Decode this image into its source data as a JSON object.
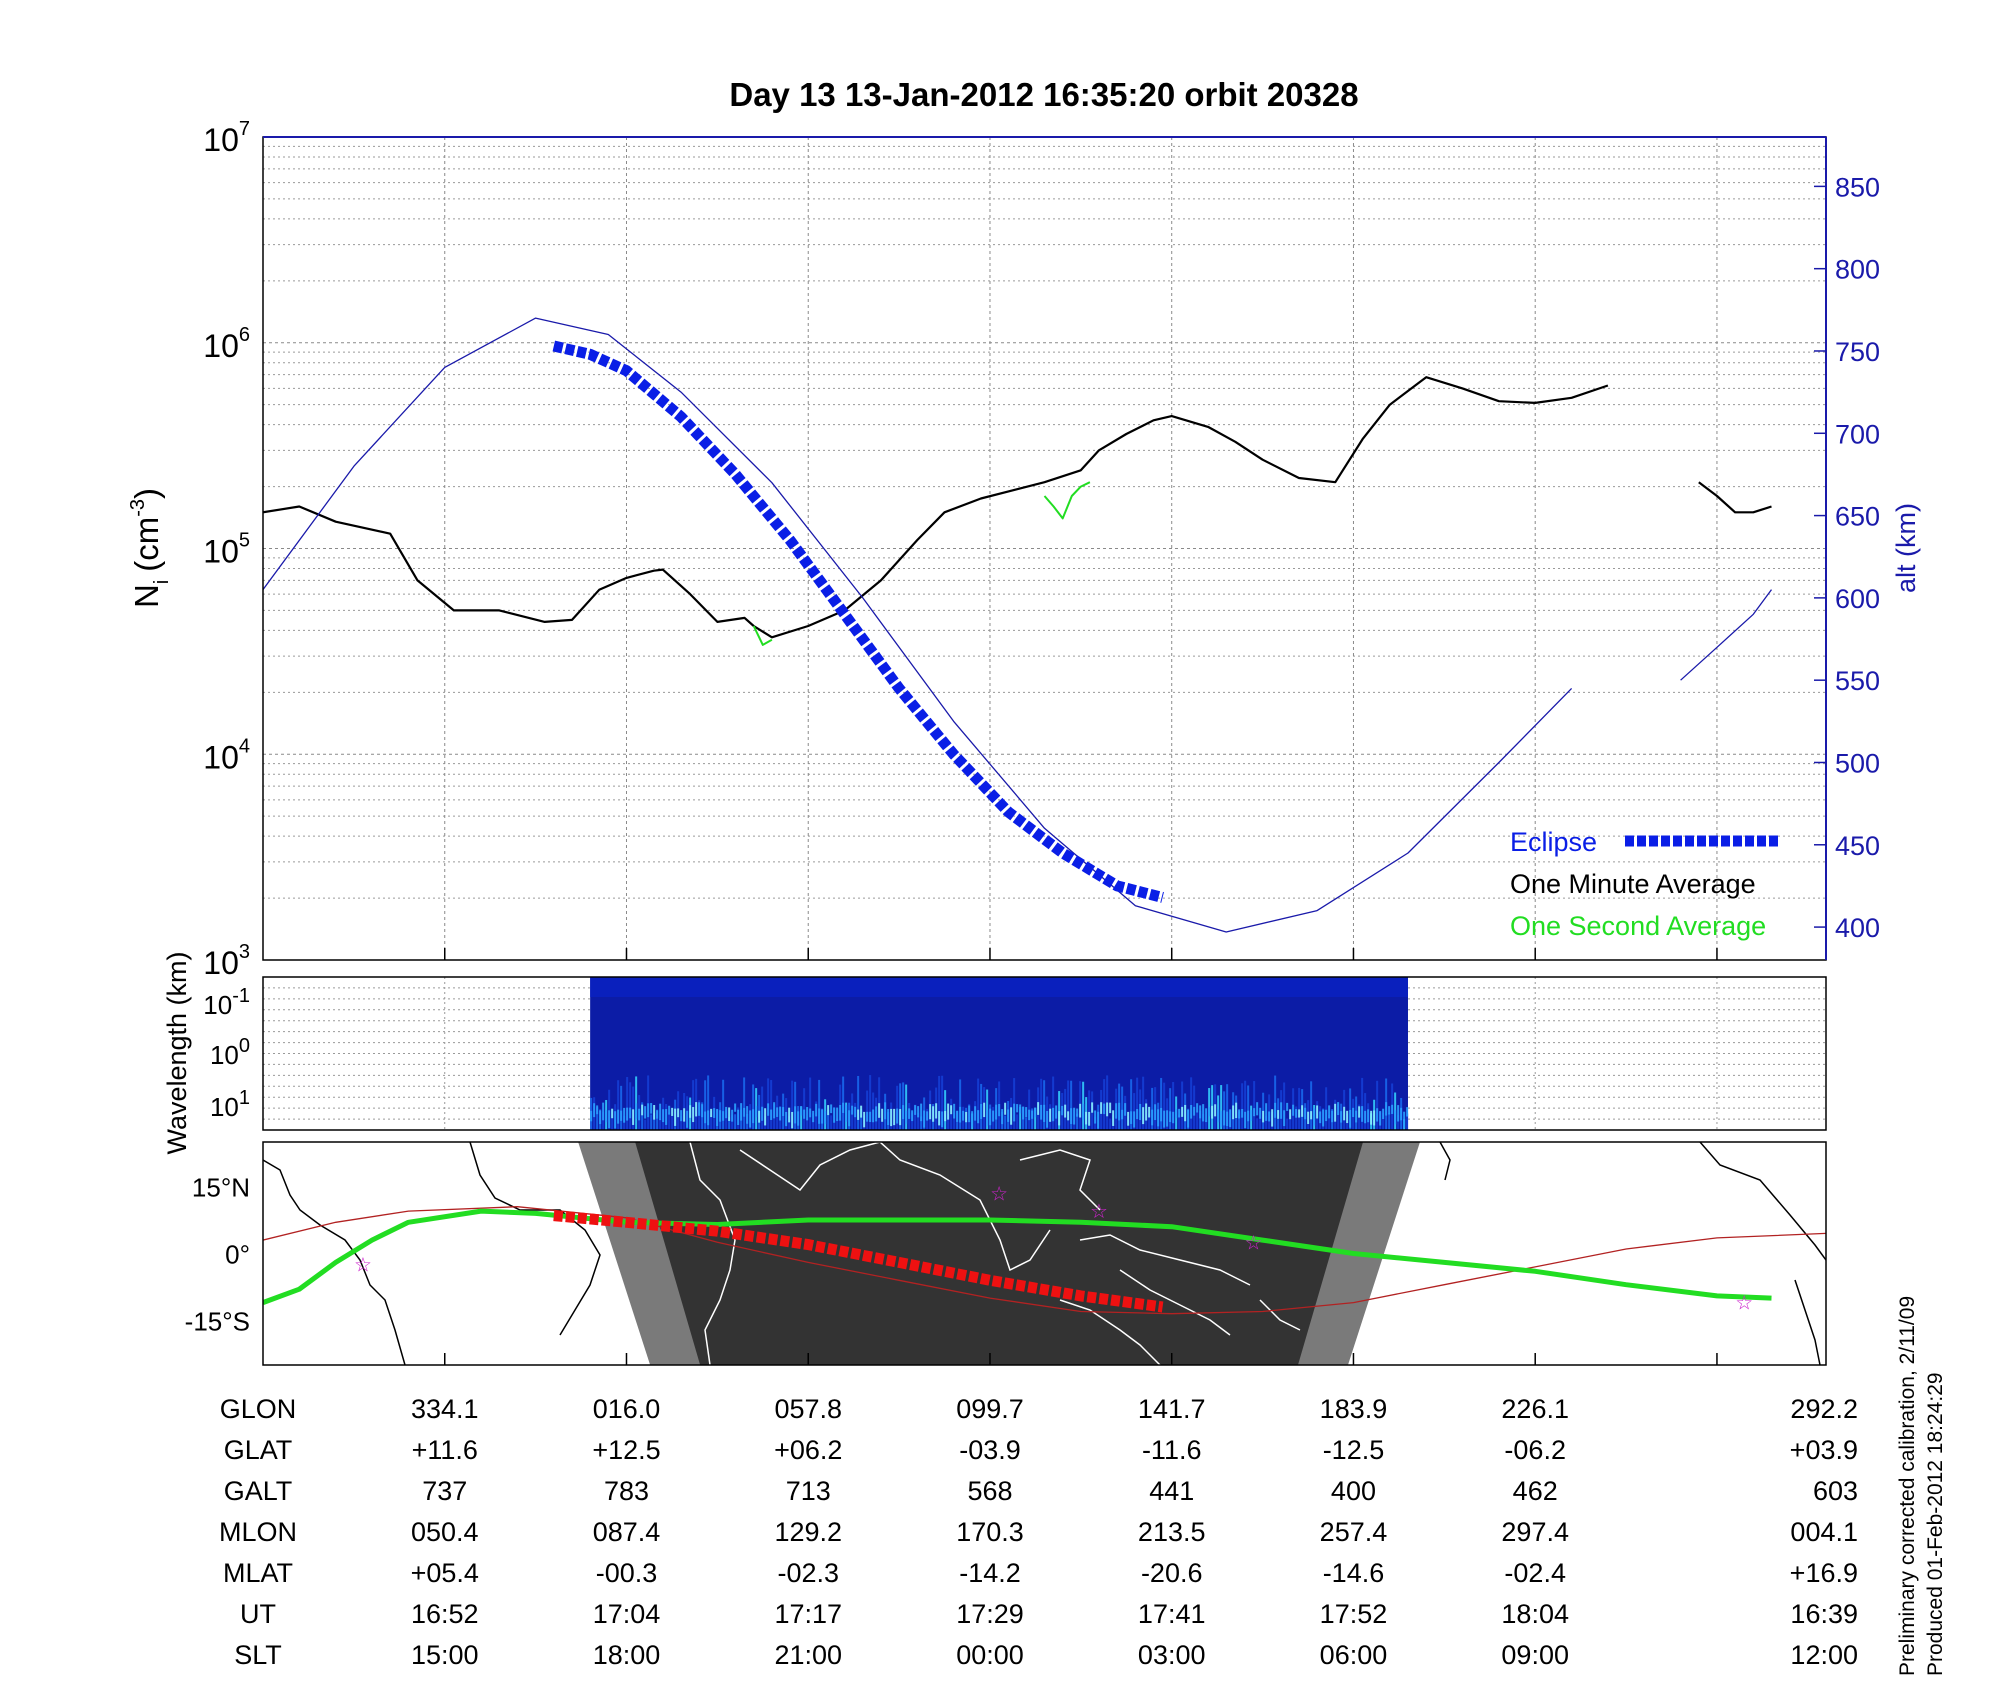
{
  "chart_data": {
    "type": "line",
    "title": "Day 13  13-Jan-2012 16:35:20   orbit 20328",
    "main_panel": {
      "ylabel": "N",
      "ylabel_sub": "i",
      "ylabel_unit_open": "(cm",
      "ylabel_unit_exp": "-3",
      "ylabel_unit_close": ")",
      "yscale": "log",
      "ylim": [
        1000,
        10000000
      ],
      "y_ticks": [
        {
          "value": 1000,
          "base": "10",
          "exp": "3"
        },
        {
          "value": 10000,
          "base": "10",
          "exp": "4"
        },
        {
          "value": 100000,
          "base": "10",
          "exp": "5"
        },
        {
          "value": 1000000,
          "base": "10",
          "exp": "6"
        },
        {
          "value": 10000000,
          "base": "10",
          "exp": "7"
        }
      ],
      "xlim": [
        -1,
        7.6
      ],
      "grid": true,
      "y2label": "alt (km)",
      "y2lim": [
        380,
        880
      ],
      "y2_ticks": [
        "400",
        "450",
        "500",
        "550",
        "600",
        "650",
        "700",
        "750",
        "800",
        "850"
      ],
      "legend_position": "bottom-right",
      "legend": [
        {
          "name": "Eclipse",
          "color": "#0a1ee6",
          "style": "dashed-thick"
        },
        {
          "name": "One Minute Average",
          "color": "#000000"
        },
        {
          "name": "One Second Average",
          "color": "#22dd22"
        }
      ],
      "series": [
        {
          "name": "One Minute Average",
          "color": "#000000",
          "segments": [
            [
              [
                -1,
                150000
              ],
              [
                -0.8,
                160000
              ],
              [
                -0.6,
                135000
              ],
              [
                -0.3,
                118000
              ],
              [
                -0.15,
                70000
              ],
              [
                0.05,
                50000
              ],
              [
                0.3,
                50000
              ],
              [
                0.55,
                44000
              ],
              [
                0.7,
                45000
              ],
              [
                0.85,
                63000
              ],
              [
                1.0,
                72000
              ],
              [
                1.15,
                78000
              ],
              [
                1.2,
                79000
              ],
              [
                1.35,
                60000
              ],
              [
                1.5,
                44000
              ],
              [
                1.65,
                46000
              ],
              [
                1.7,
                42000
              ],
              [
                1.8,
                37000
              ],
              [
                2.0,
                42000
              ],
              [
                2.2,
                50000
              ],
              [
                2.4,
                70000
              ],
              [
                2.6,
                110000
              ],
              [
                2.75,
                150000
              ],
              [
                2.95,
                175000
              ],
              [
                3.3,
                210000
              ],
              [
                3.5,
                240000
              ],
              [
                3.6,
                300000
              ],
              [
                3.75,
                360000
              ],
              [
                3.9,
                420000
              ],
              [
                4.0,
                440000
              ],
              [
                4.2,
                390000
              ],
              [
                4.35,
                330000
              ],
              [
                4.5,
                270000
              ],
              [
                4.7,
                220000
              ],
              [
                4.9,
                210000
              ],
              [
                5.05,
                340000
              ],
              [
                5.2,
                500000
              ],
              [
                5.4,
                680000
              ],
              [
                5.6,
                600000
              ],
              [
                5.8,
                520000
              ],
              [
                6.0,
                510000
              ],
              [
                6.2,
                540000
              ],
              [
                6.4,
                620000
              ]
            ],
            [
              [
                6.9,
                210000
              ],
              [
                7.0,
                180000
              ],
              [
                7.1,
                150000
              ],
              [
                7.2,
                150000
              ],
              [
                7.3,
                160000
              ]
            ]
          ]
        },
        {
          "name": "One Second Average",
          "color": "#22dd22",
          "segments": [
            [
              [
                3.3,
                180000
              ],
              [
                3.35,
                160000
              ],
              [
                3.4,
                140000
              ],
              [
                3.45,
                180000
              ],
              [
                3.5,
                200000
              ],
              [
                3.55,
                210000
              ]
            ],
            [
              [
                1.7,
                42000
              ],
              [
                1.75,
                34000
              ],
              [
                1.8,
                36000
              ]
            ]
          ]
        },
        {
          "name": "Altitude",
          "axis": "y2",
          "color": "#1a1aaa",
          "segments": [
            [
              [
                -1,
                605
              ],
              [
                -0.5,
                680
              ],
              [
                0,
                740
              ],
              [
                0.5,
                770
              ],
              [
                0.9,
                760
              ],
              [
                1.3,
                725
              ],
              [
                1.8,
                670
              ],
              [
                2.3,
                600
              ],
              [
                2.8,
                525
              ],
              [
                3.3,
                460
              ],
              [
                3.8,
                413
              ],
              [
                4.3,
                397
              ],
              [
                4.8,
                410
              ],
              [
                5.3,
                445
              ],
              [
                5.8,
                500
              ],
              [
                6.2,
                545
              ]
            ],
            [
              [
                6.8,
                550
              ],
              [
                7.0,
                570
              ],
              [
                7.2,
                590
              ],
              [
                7.3,
                605
              ]
            ]
          ]
        },
        {
          "name": "Eclipse",
          "axis": "y2",
          "color": "#0a1ee6",
          "segments": [
            [
              [
                0.6,
                753
              ],
              [
                0.8,
                748
              ],
              [
                1.0,
                738
              ],
              [
                1.3,
                710
              ],
              [
                1.6,
                675
              ],
              [
                1.9,
                635
              ],
              [
                2.2,
                590
              ],
              [
                2.5,
                545
              ],
              [
                2.8,
                505
              ],
              [
                3.1,
                470
              ],
              [
                3.4,
                445
              ],
              [
                3.7,
                425
              ],
              [
                3.95,
                418
              ]
            ]
          ]
        }
      ]
    },
    "spectrogram_panel": {
      "ylabel": "Wavelength (km)",
      "y_ticks": [
        {
          "base": "10",
          "exp": "-1"
        },
        {
          "base": "10",
          "exp": "0"
        },
        {
          "base": "10",
          "exp": "1"
        }
      ],
      "data_start_x": 0.8,
      "data_end_x": 5.3,
      "colormap": "jet"
    },
    "map_panel": {
      "y_ticks": [
        {
          "value": 15,
          "label": "15°N"
        },
        {
          "value": 0,
          "label": "0°"
        },
        {
          "value": -15,
          "label": "-15°S"
        }
      ],
      "ylim": [
        -25,
        25
      ],
      "night_region_x": [
        0.8,
        5.3
      ],
      "geographic_track": [
        [
          -1,
          -11
        ],
        [
          -0.8,
          -8
        ],
        [
          -0.6,
          -2
        ],
        [
          -0.4,
          3
        ],
        [
          -0.2,
          7
        ],
        [
          0.2,
          9.5
        ],
        [
          0.5,
          9
        ],
        [
          1.0,
          7
        ],
        [
          1.5,
          6.5
        ],
        [
          2.0,
          7.5
        ],
        [
          2.5,
          7.5
        ],
        [
          3.0,
          7.5
        ],
        [
          3.5,
          7
        ],
        [
          4.0,
          6
        ],
        [
          4.5,
          3
        ],
        [
          5.0,
          0
        ],
        [
          5.5,
          -2
        ],
        [
          6.0,
          -4
        ],
        [
          6.5,
          -7
        ],
        [
          7.0,
          -9.5
        ],
        [
          7.3,
          -10
        ]
      ],
      "magnetic_equator": [
        [
          -1,
          3
        ],
        [
          -0.6,
          7
        ],
        [
          -0.2,
          9.5
        ],
        [
          0.4,
          10.5
        ],
        [
          1.0,
          8
        ],
        [
          1.5,
          2.5
        ],
        [
          2.0,
          -2
        ],
        [
          2.5,
          -6
        ],
        [
          3.0,
          -10
        ],
        [
          3.5,
          -13
        ],
        [
          4.0,
          -13.5
        ],
        [
          4.5,
          -13
        ],
        [
          5.0,
          -11
        ],
        [
          5.5,
          -7
        ],
        [
          6.0,
          -3
        ],
        [
          6.5,
          1
        ],
        [
          7.0,
          3.5
        ],
        [
          7.6,
          4.5
        ]
      ],
      "eclipse_track": [
        [
          0.6,
          8.5
        ],
        [
          1.0,
          7
        ],
        [
          1.5,
          5
        ],
        [
          2.0,
          2
        ],
        [
          2.5,
          -2
        ],
        [
          3.0,
          -6
        ],
        [
          3.5,
          -9.5
        ],
        [
          3.95,
          -12
        ]
      ],
      "stars": [
        [
          -0.45,
          -2.5
        ],
        [
          3.05,
          13.5
        ],
        [
          3.6,
          9.5
        ],
        [
          4.45,
          2.5
        ],
        [
          7.15,
          -11
        ]
      ]
    },
    "table": {
      "row_labels": [
        "GLON",
        "GLAT",
        "GALT",
        "MLON",
        "MLAT",
        "UT",
        "SLT"
      ],
      "columns": [
        [
          "334.1",
          "+11.6",
          "737",
          "050.4",
          "+05.4",
          "16:52",
          "15:00"
        ],
        [
          "016.0",
          "+12.5",
          "783",
          "087.4",
          "-00.3",
          "17:04",
          "18:00"
        ],
        [
          "057.8",
          "+06.2",
          "713",
          "129.2",
          "-02.3",
          "17:17",
          "21:00"
        ],
        [
          "099.7",
          "-03.9",
          "568",
          "170.3",
          "-14.2",
          "17:29",
          "00:00"
        ],
        [
          "141.7",
          "-11.6",
          "441",
          "213.5",
          "-20.6",
          "17:41",
          "03:00"
        ],
        [
          "183.9",
          "-12.5",
          "400",
          "257.4",
          "-14.6",
          "17:52",
          "06:00"
        ],
        [
          "226.1",
          "-06.2",
          "462",
          "297.4",
          "-02.4",
          "18:04",
          "09:00"
        ],
        [
          "292.2",
          "+03.9",
          "603",
          "004.1",
          "+16.9",
          "16:39",
          "12:00"
        ]
      ]
    },
    "footnote": [
      "Preliminary corrected calibration, 2/11/09",
      "Produced 01-Feb-2012 18:24:29"
    ]
  }
}
